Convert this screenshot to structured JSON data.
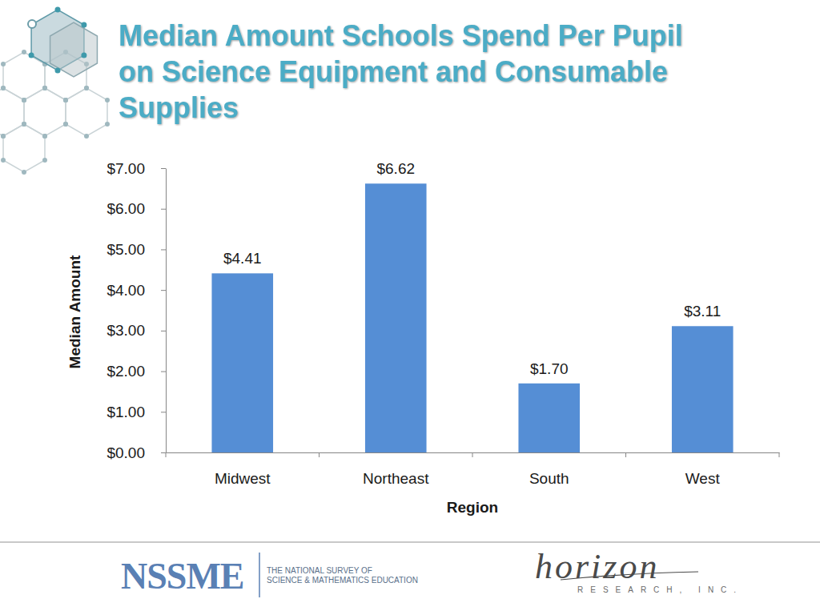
{
  "chart_data": {
    "type": "bar",
    "title": "Median Amount Schools Spend Per Pupil on Science Equipment and Consumable Supplies",
    "x_label": "Region",
    "y_label": "Median Amount",
    "categories": [
      "Midwest",
      "Northeast",
      "South",
      "West"
    ],
    "values": [
      4.41,
      6.62,
      1.7,
      3.11
    ],
    "value_labels": [
      "$4.41",
      "$6.62",
      "$1.70",
      "$3.11"
    ],
    "color": "#558ed5",
    "ylim": [
      0,
      7
    ],
    "yticks": [
      {
        "value": 0,
        "label": "$0.00"
      },
      {
        "value": 1,
        "label": "$1.00"
      },
      {
        "value": 2,
        "label": "$2.00"
      },
      {
        "value": 3,
        "label": "$3.00"
      },
      {
        "value": 4,
        "label": "$4.00"
      },
      {
        "value": 5,
        "label": "$5.00"
      },
      {
        "value": 6,
        "label": "$6.00"
      },
      {
        "value": 7,
        "label": "$7.00"
      }
    ],
    "grid": false,
    "data_labels": true
  },
  "footer": {
    "left_logo": "NSSME",
    "left_logo_caption": [
      "THE NATIONAL SURVEY OF",
      "SCIENCE & MATHEMATICS EDUCATION"
    ],
    "right_logo": "horizon",
    "right_logo_caption": "RESEARCH, INC."
  }
}
